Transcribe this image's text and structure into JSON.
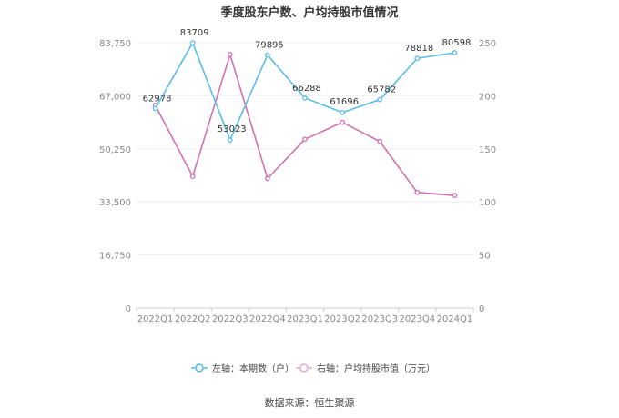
{
  "chart_data": {
    "type": "line",
    "title": "季度股东户数、户均持股市值情况",
    "categories": [
      "2022Q1",
      "2022Q2",
      "2022Q3",
      "2022Q4",
      "2023Q1",
      "2023Q2",
      "2023Q3",
      "2023Q4",
      "2024Q1"
    ],
    "left_axis": {
      "ylim": [
        0,
        83750
      ],
      "ticks": [
        "0",
        "16,750",
        "33,500",
        "50,250",
        "67,000",
        "83,750"
      ]
    },
    "right_axis": {
      "ylim": [
        0,
        250
      ],
      "ticks": [
        "0",
        "50",
        "100",
        "150",
        "200",
        "250"
      ]
    },
    "grid": true,
    "legend_position": "bottom",
    "series": [
      {
        "name": "左轴：本期数（户）",
        "axis": "left",
        "color": "#5bbbea",
        "values": [
          62978,
          83709,
          53023,
          79895,
          66288,
          61696,
          65782,
          78818,
          80598
        ],
        "labels": [
          "62978",
          "83709",
          "53023",
          "79895",
          "66288",
          "61696",
          "65782",
          "78818",
          "80598"
        ]
      },
      {
        "name": "右轴：户均持股市值（万元）",
        "axis": "right",
        "color": "#d46fb4",
        "legend_color": "#e7a9d6",
        "values": [
          191,
          124,
          239,
          122,
          159,
          175,
          157,
          109,
          106
        ]
      }
    ],
    "source": "数据来源：恒生聚源"
  }
}
